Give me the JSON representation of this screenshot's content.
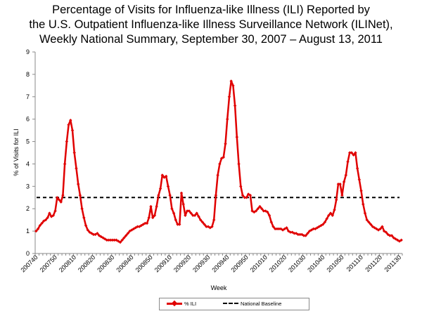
{
  "title_lines": [
    "Percentage of Visits for Influenza-like Illness (ILI) Reported by",
    "the U.S. Outpatient Influenza-like Illness Surveillance Network (ILINet),",
    "Weekly National Summary, September 30, 2007 – August 13, 2011"
  ],
  "colors": {
    "ili": "#e00000",
    "baseline": "#000000"
  },
  "chart_data": {
    "type": "line",
    "title": "Percentage of Visits for Influenza-like Illness (ILI) Reported by the U.S. Outpatient Influenza-like Illness Surveillance Network (ILINet), Weekly National Summary, September 30, 2007 – August 13, 2011",
    "xlabel": "Week",
    "ylabel": "% of Visits for ILI",
    "ylim": [
      0,
      9
    ],
    "yticks": [
      "0",
      "1",
      "2",
      "3",
      "4",
      "5",
      "6",
      "7",
      "8",
      "9"
    ],
    "xticks": [
      "200740",
      "200750",
      "200810",
      "200820",
      "200830",
      "200840",
      "200850",
      "200910",
      "200920",
      "200930",
      "200940",
      "200950",
      "201010",
      "201020",
      "201030",
      "201040",
      "201050",
      "201110",
      "201120",
      "201130"
    ],
    "legend_position": "bottom",
    "grid": false,
    "series": [
      {
        "name": "% ILI",
        "style": "line-diamond",
        "values": [
          1.0,
          1.1,
          1.25,
          1.35,
          1.45,
          1.5,
          1.6,
          1.8,
          1.65,
          1.7,
          1.9,
          2.5,
          2.4,
          2.3,
          2.6,
          4.0,
          5.0,
          5.75,
          5.95,
          5.5,
          4.5,
          3.8,
          3.1,
          2.6,
          2.0,
          1.6,
          1.25,
          1.05,
          0.95,
          0.9,
          0.85,
          0.85,
          0.9,
          0.8,
          0.75,
          0.7,
          0.65,
          0.6,
          0.6,
          0.6,
          0.6,
          0.6,
          0.6,
          0.55,
          0.5,
          0.6,
          0.7,
          0.8,
          0.9,
          1.0,
          1.05,
          1.1,
          1.15,
          1.2,
          1.2,
          1.25,
          1.3,
          1.35,
          1.35,
          1.6,
          2.1,
          1.6,
          1.7,
          2.1,
          2.6,
          2.9,
          3.5,
          3.4,
          3.45,
          3.0,
          2.6,
          2.0,
          1.8,
          1.5,
          1.3,
          1.3,
          2.7,
          2.2,
          1.7,
          1.9,
          1.9,
          1.8,
          1.7,
          1.7,
          1.8,
          1.65,
          1.5,
          1.4,
          1.3,
          1.2,
          1.2,
          1.15,
          1.2,
          1.5,
          2.6,
          3.5,
          4.0,
          4.25,
          4.3,
          4.9,
          6.0,
          7.0,
          7.7,
          7.5,
          6.6,
          5.2,
          4.0,
          3.0,
          2.6,
          2.5,
          2.5,
          2.65,
          2.6,
          1.9,
          1.85,
          1.9,
          2.0,
          2.1,
          2.0,
          1.9,
          1.9,
          1.85,
          1.7,
          1.4,
          1.2,
          1.1,
          1.1,
          1.1,
          1.1,
          1.05,
          1.1,
          1.15,
          1.0,
          0.95,
          0.95,
          0.9,
          0.9,
          0.85,
          0.85,
          0.85,
          0.8,
          0.8,
          0.9,
          1.0,
          1.05,
          1.1,
          1.1,
          1.15,
          1.2,
          1.25,
          1.3,
          1.4,
          1.55,
          1.7,
          1.8,
          1.7,
          1.95,
          2.4,
          3.1,
          3.1,
          2.6,
          3.2,
          3.5,
          4.1,
          4.5,
          4.5,
          4.4,
          4.5,
          3.8,
          3.3,
          2.8,
          2.2,
          1.8,
          1.5,
          1.4,
          1.3,
          1.2,
          1.15,
          1.1,
          1.05,
          1.1,
          1.2,
          1.0,
          0.95,
          0.85,
          0.8,
          0.8,
          0.7,
          0.65,
          0.6,
          0.55,
          0.6
        ]
      },
      {
        "name": "National Baseline",
        "style": "dashed",
        "value": 2.5
      }
    ]
  }
}
